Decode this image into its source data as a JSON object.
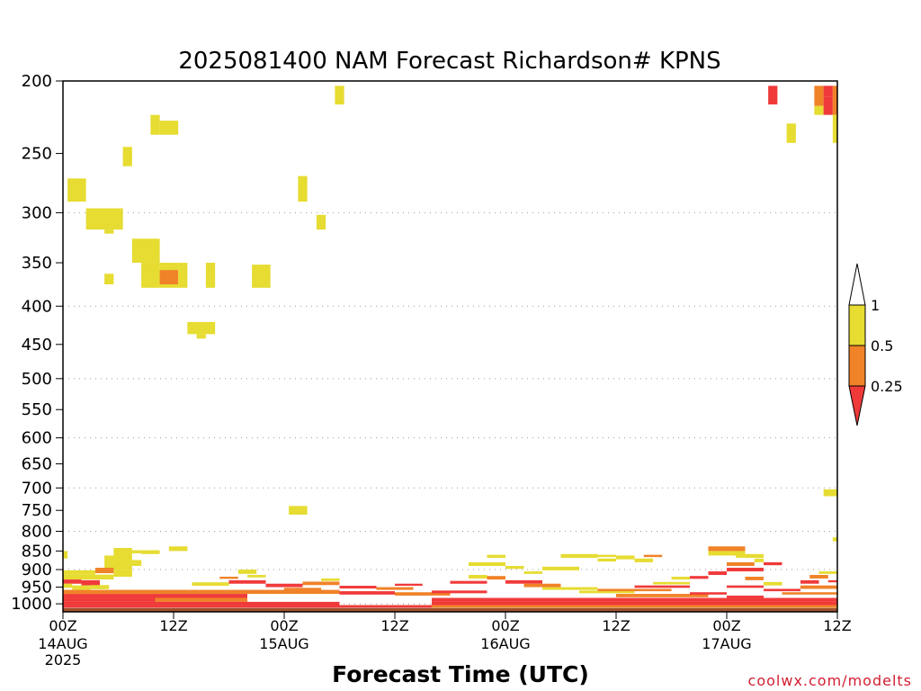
{
  "chart_data": {
    "type": "heatmap",
    "title": "2025081400 NAM Forecast Richardson# KPNS",
    "xlabel": "Forecast Time (UTC)",
    "ylabel": "",
    "credit": "coolwx.com/modelts",
    "x_unit": "forecast hour",
    "xlim": [
      0,
      84
    ],
    "y_unit": "hPa",
    "ylim": [
      1025,
      200
    ],
    "y_scale": "log-pressure",
    "y_ticks": [
      "200",
      "250",
      "300",
      "350",
      "400",
      "450",
      "500",
      "550",
      "600",
      "650",
      "700",
      "750",
      "800",
      "850",
      "900",
      "950",
      "1000"
    ],
    "grid_levels": [
      300,
      400,
      500,
      600,
      700,
      800,
      900,
      1000
    ],
    "x_ticks": [
      {
        "hour": 0,
        "label": "00Z",
        "sub": "14AUG",
        "sub2": "2025"
      },
      {
        "hour": 12,
        "label": "12Z",
        "sub": "",
        "sub2": ""
      },
      {
        "hour": 24,
        "label": "00Z",
        "sub": "15AUG",
        "sub2": ""
      },
      {
        "hour": 36,
        "label": "12Z",
        "sub": "",
        "sub2": ""
      },
      {
        "hour": 48,
        "label": "00Z",
        "sub": "16AUG",
        "sub2": ""
      },
      {
        "hour": 60,
        "label": "12Z",
        "sub": "",
        "sub2": ""
      },
      {
        "hour": 72,
        "label": "00Z",
        "sub": "17AUG",
        "sub2": ""
      },
      {
        "hour": 84,
        "label": "12Z",
        "sub": "",
        "sub2": ""
      }
    ],
    "legend": {
      "placement": "right",
      "labels": [
        "1",
        "0.5",
        "0.25"
      ],
      "bins": [
        {
          "range": "<0.25",
          "color": "#f03a3a"
        },
        {
          "range": "0.25-0.5",
          "color": "#f08228"
        },
        {
          "range": "0.5-1",
          "color": "#e6dc32"
        },
        {
          "range": ">1",
          "color": "#ffffff"
        }
      ]
    },
    "ground_color": "#a0522d",
    "ground_top_hpa": 1013,
    "cells_format": "[hour_start, hour_end, p_top_hPa, p_bottom_hPa, class] class: 1=Ri 0.5-1, 2=Ri 0.25-0.5, 3=Ri<0.25",
    "cells": [
      [
        0.5,
        2.5,
        270,
        290,
        1
      ],
      [
        2.5,
        6.5,
        296,
        316,
        1
      ],
      [
        4.5,
        5.5,
        316,
        320,
        1
      ],
      [
        6.5,
        7.5,
        245,
        260,
        1
      ],
      [
        9.5,
        10.5,
        222,
        236,
        1
      ],
      [
        10.5,
        12.5,
        226,
        236,
        1
      ],
      [
        7.5,
        10.5,
        325,
        350,
        1
      ],
      [
        8.5,
        10.5,
        350,
        378,
        1
      ],
      [
        10.5,
        12.5,
        350,
        378,
        1
      ],
      [
        10.5,
        12.5,
        358,
        374,
        2
      ],
      [
        12.5,
        13.5,
        350,
        378,
        1
      ],
      [
        4.5,
        5.5,
        362,
        374,
        1
      ],
      [
        15.5,
        16.5,
        350,
        378,
        1
      ],
      [
        20.5,
        22.5,
        352,
        378,
        1
      ],
      [
        13.5,
        16.5,
        420,
        436,
        1
      ],
      [
        14.5,
        15.5,
        436,
        442,
        1
      ],
      [
        25.5,
        26.5,
        268,
        290,
        1
      ],
      [
        27.5,
        28.5,
        302,
        316,
        1
      ],
      [
        29.5,
        30.5,
        203,
        215,
        1
      ],
      [
        24.5,
        26.5,
        740,
        760,
        1
      ],
      [
        76.5,
        77.5,
        203,
        215,
        3
      ],
      [
        78.5,
        79.5,
        228,
        242,
        1
      ],
      [
        81.5,
        82.5,
        203,
        216,
        2
      ],
      [
        81.5,
        82.5,
        216,
        222,
        1
      ],
      [
        82.5,
        83.5,
        203,
        210,
        3
      ],
      [
        82.5,
        83.5,
        210,
        222,
        3
      ],
      [
        83.5,
        84,
        203,
        222,
        2
      ],
      [
        83.5,
        84,
        222,
        242,
        1
      ],
      [
        82.5,
        84,
        703,
        718,
        1
      ],
      [
        83.5,
        84,
        815,
        825,
        1
      ],
      [
        0,
        0.5,
        850,
        870,
        1
      ],
      [
        5.5,
        7.5,
        842,
        862,
        1
      ],
      [
        7.5,
        8.5,
        848,
        856,
        1
      ],
      [
        8.5,
        10.5,
        848,
        858,
        1
      ],
      [
        11.5,
        13.5,
        838,
        850,
        1
      ],
      [
        4.5,
        7.5,
        862,
        902,
        1
      ],
      [
        7.5,
        8.5,
        874,
        890,
        1
      ],
      [
        5.5,
        7.5,
        902,
        920,
        1
      ],
      [
        0,
        3.5,
        902,
        914,
        1
      ],
      [
        3.5,
        5.5,
        895,
        910,
        2
      ],
      [
        0,
        5.5,
        914,
        928,
        1
      ],
      [
        0,
        2,
        928,
        940,
        3
      ],
      [
        2,
        4,
        930,
        945,
        3
      ],
      [
        0,
        1,
        940,
        952,
        1
      ],
      [
        1,
        3,
        945,
        958,
        1
      ],
      [
        3,
        5,
        944,
        956,
        1
      ],
      [
        0,
        30,
        958,
        970,
        2
      ],
      [
        0,
        20,
        970,
        982,
        3
      ],
      [
        0,
        10,
        982,
        994,
        3
      ],
      [
        10,
        20,
        982,
        994,
        2
      ],
      [
        0,
        30,
        994,
        1004,
        3
      ],
      [
        0,
        40,
        1004,
        1012,
        3
      ],
      [
        14,
        18,
        936,
        946,
        1
      ],
      [
        18,
        22,
        930,
        940,
        3
      ],
      [
        19,
        21,
        900,
        912,
        1
      ],
      [
        17,
        19,
        920,
        926,
        2
      ],
      [
        20,
        22,
        915,
        922,
        1
      ],
      [
        22,
        26,
        940,
        950,
        3
      ],
      [
        26,
        30,
        934,
        944,
        2
      ],
      [
        28,
        30,
        925,
        932,
        1
      ],
      [
        24,
        28,
        952,
        962,
        2
      ],
      [
        30,
        34,
        946,
        954,
        3
      ],
      [
        34,
        38,
        950,
        958,
        2
      ],
      [
        36,
        39,
        940,
        946,
        3
      ],
      [
        30,
        36,
        962,
        972,
        3
      ],
      [
        36,
        42,
        965,
        975,
        2
      ],
      [
        40,
        46,
        960,
        968,
        3
      ],
      [
        42,
        46,
        932,
        940,
        3
      ],
      [
        44,
        46,
        915,
        925,
        1
      ],
      [
        46,
        48,
        918,
        928,
        2
      ],
      [
        44,
        48,
        880,
        890,
        1
      ],
      [
        46,
        48,
        860,
        868,
        1
      ],
      [
        48,
        50,
        890,
        898,
        1
      ],
      [
        50,
        52,
        905,
        912,
        1
      ],
      [
        52,
        56,
        892,
        902,
        1
      ],
      [
        54,
        58,
        858,
        868,
        1
      ],
      [
        57,
        60,
        860,
        866,
        1
      ],
      [
        58,
        60,
        870,
        878,
        1
      ],
      [
        60,
        62,
        862,
        872,
        1
      ],
      [
        62,
        64,
        870,
        880,
        1
      ],
      [
        63,
        65,
        860,
        866,
        2
      ],
      [
        48,
        52,
        930,
        940,
        3
      ],
      [
        50,
        54,
        940,
        950,
        2
      ],
      [
        52,
        58,
        950,
        958,
        1
      ],
      [
        56,
        62,
        960,
        968,
        1
      ],
      [
        58,
        66,
        955,
        962,
        2
      ],
      [
        60,
        70,
        970,
        980,
        2
      ],
      [
        62,
        68,
        945,
        952,
        3
      ],
      [
        64,
        68,
        935,
        942,
        1
      ],
      [
        66,
        68,
        920,
        928,
        1
      ],
      [
        40,
        84,
        982,
        994,
        3
      ],
      [
        40,
        84,
        994,
        1004,
        3
      ],
      [
        40,
        84,
        1004,
        1012,
        2
      ],
      [
        68,
        70,
        918,
        926,
        3
      ],
      [
        70,
        72,
        905,
        915,
        3
      ],
      [
        72,
        76,
        895,
        905,
        3
      ],
      [
        72,
        75,
        880,
        890,
        2
      ],
      [
        70,
        74,
        850,
        862,
        1
      ],
      [
        70,
        74,
        838,
        850,
        2
      ],
      [
        73,
        76,
        858,
        868,
        1
      ],
      [
        75,
        76,
        870,
        880,
        1
      ],
      [
        76,
        78,
        880,
        888,
        3
      ],
      [
        74,
        76,
        920,
        930,
        2
      ],
      [
        76,
        78,
        935,
        945,
        1
      ],
      [
        72,
        76,
        945,
        952,
        3
      ],
      [
        76,
        80,
        955,
        962,
        3
      ],
      [
        80,
        82,
        930,
        940,
        3
      ],
      [
        81,
        83,
        915,
        925,
        2
      ],
      [
        82,
        84,
        905,
        912,
        1
      ],
      [
        83,
        84,
        930,
        936,
        3
      ],
      [
        80,
        84,
        945,
        955,
        2
      ],
      [
        78,
        84,
        965,
        972,
        2
      ],
      [
        68,
        72,
        965,
        972,
        3
      ],
      [
        72,
        76,
        975,
        982,
        3
      ]
    ]
  }
}
